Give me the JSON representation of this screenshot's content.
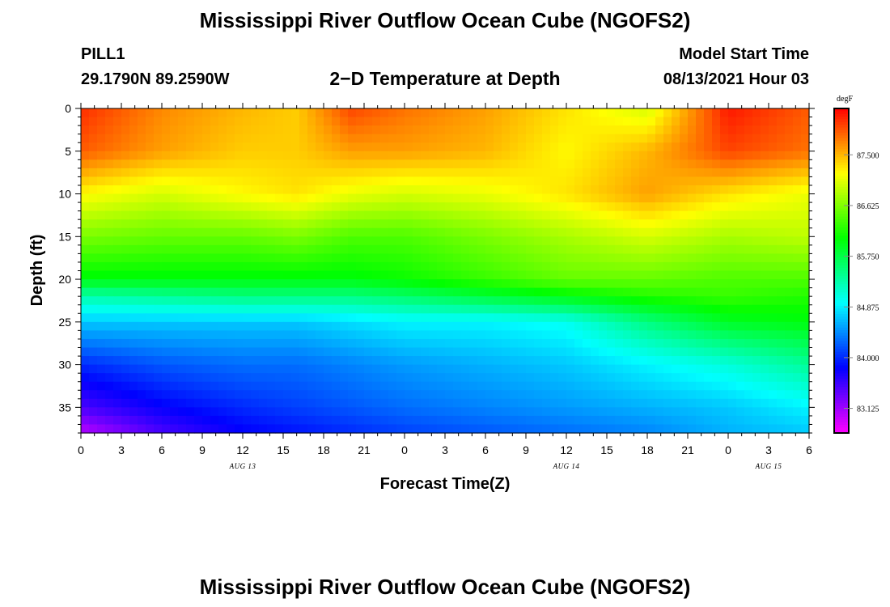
{
  "page": {
    "title_top": "Mississippi River Outflow Ocean Cube (NGOFS2)",
    "title_bottom": "Mississippi River Outflow Ocean Cube (NGOFS2)",
    "station": "PILL1",
    "coords": "29.1790N  89.2590W",
    "subtitle": "2−D Temperature at Depth",
    "model_start_label": "Model Start Time",
    "model_start_value": "08/13/2021 Hour 03"
  },
  "chart_data": {
    "type": "heatmap",
    "title": "2−D Temperature at Depth",
    "xlabel": "Forecast Time(Z)",
    "ylabel": "Depth (ft)",
    "x_range_hours": [
      0,
      54
    ],
    "x_ticks": [
      "0",
      "3",
      "6",
      "9",
      "12",
      "15",
      "18",
      "21",
      "0",
      "3",
      "6",
      "9",
      "12",
      "15",
      "18",
      "21",
      "0",
      "3",
      "6"
    ],
    "date_labels": [
      {
        "text": "AUG 13",
        "hour": 12
      },
      {
        "text": "AUG 14",
        "hour": 36
      },
      {
        "text": "AUG 15",
        "hour": 51
      }
    ],
    "y_range": [
      0,
      38
    ],
    "y_ticks": [
      0,
      5,
      10,
      15,
      20,
      25,
      30,
      35
    ],
    "units": "degF",
    "colorbar": {
      "min": 82.7,
      "max": 88.3,
      "ticks": [
        87.5,
        86.625,
        85.75,
        84.875,
        84.0,
        83.125
      ],
      "tick_labels": [
        "87.500",
        "86.625",
        "85.750",
        "84.875",
        "84.000",
        "83.125"
      ]
    },
    "depths_ft": [
      0,
      5,
      10,
      15,
      20,
      22,
      25,
      30,
      35,
      38
    ],
    "hours": [
      0,
      6,
      12,
      16,
      20,
      24,
      30,
      36,
      42,
      48,
      54
    ],
    "values": [
      [
        88.1,
        87.7,
        87.5,
        87.4,
        88.0,
        87.8,
        87.6,
        87.3,
        87.0,
        88.2,
        87.9
      ],
      [
        87.9,
        87.6,
        87.4,
        87.4,
        87.6,
        87.6,
        87.5,
        87.2,
        87.5,
        88.0,
        87.8
      ],
      [
        87.2,
        87.0,
        87.2,
        87.3,
        87.1,
        87.0,
        87.1,
        87.3,
        87.6,
        87.3,
        87.1
      ],
      [
        86.6,
        86.5,
        86.5,
        86.6,
        86.4,
        86.4,
        86.6,
        86.8,
        87.0,
        86.8,
        86.9
      ],
      [
        86.0,
        86.0,
        86.0,
        86.0,
        86.0,
        86.1,
        86.3,
        86.5,
        86.5,
        86.4,
        86.4
      ],
      [
        85.3,
        85.4,
        85.5,
        85.5,
        85.5,
        85.6,
        85.8,
        86.0,
        86.2,
        86.3,
        86.2
      ],
      [
        84.7,
        84.7,
        84.7,
        84.7,
        84.8,
        84.9,
        84.9,
        85.0,
        85.5,
        85.9,
        86.0
      ],
      [
        84.0,
        84.2,
        84.3,
        84.3,
        84.4,
        84.5,
        84.6,
        84.7,
        84.9,
        85.1,
        85.4
      ],
      [
        83.5,
        83.8,
        84.0,
        84.1,
        84.2,
        84.3,
        84.4,
        84.5,
        84.6,
        84.7,
        84.9
      ],
      [
        83.0,
        83.5,
        83.8,
        83.9,
        84.0,
        84.1,
        84.2,
        84.3,
        84.4,
        84.6,
        84.7
      ]
    ]
  }
}
